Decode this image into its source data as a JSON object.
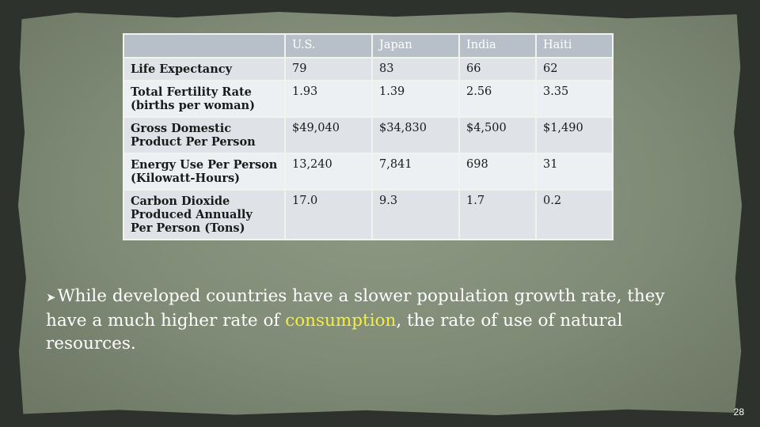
{
  "table": {
    "columns": [
      "",
      "U.S.",
      "Japan",
      "India",
      "Haiti"
    ],
    "rows": [
      {
        "label": "Life Expectancy",
        "values": [
          "79",
          "83",
          "66",
          "62"
        ]
      },
      {
        "label": "Total Fertility Rate (births per woman)",
        "values": [
          "1.93",
          "1.39",
          "2.56",
          "3.35"
        ]
      },
      {
        "label": "Gross Domestic Product Per Person",
        "values": [
          "$49,040",
          "$34,830",
          "$4,500",
          "$1,490"
        ]
      },
      {
        "label": "Energy Use Per Person (Kilowatt-Hours)",
        "values": [
          "13,240",
          "7,841",
          "698",
          "31"
        ]
      },
      {
        "label": "Carbon Dioxide Produced Annually Per Person (Tons)",
        "values": [
          "17.0",
          "9.3",
          "1.7",
          "0.2"
        ]
      }
    ]
  },
  "bullet": {
    "icon": "bullet-arrow-icon",
    "part1": "While developed countries have a slower population growth rate, they have a much higher rate of ",
    "highlight": "consumption",
    "part2": ", the rate of use of natural resources."
  },
  "page_number": "28",
  "colors": {
    "background": "#7f8b76",
    "table_header": "#b7c0c8",
    "row_odd": "#dfe3e8",
    "row_even": "#edf0f3",
    "text_light": "#ffffff",
    "highlight": "#f7ee3a"
  }
}
